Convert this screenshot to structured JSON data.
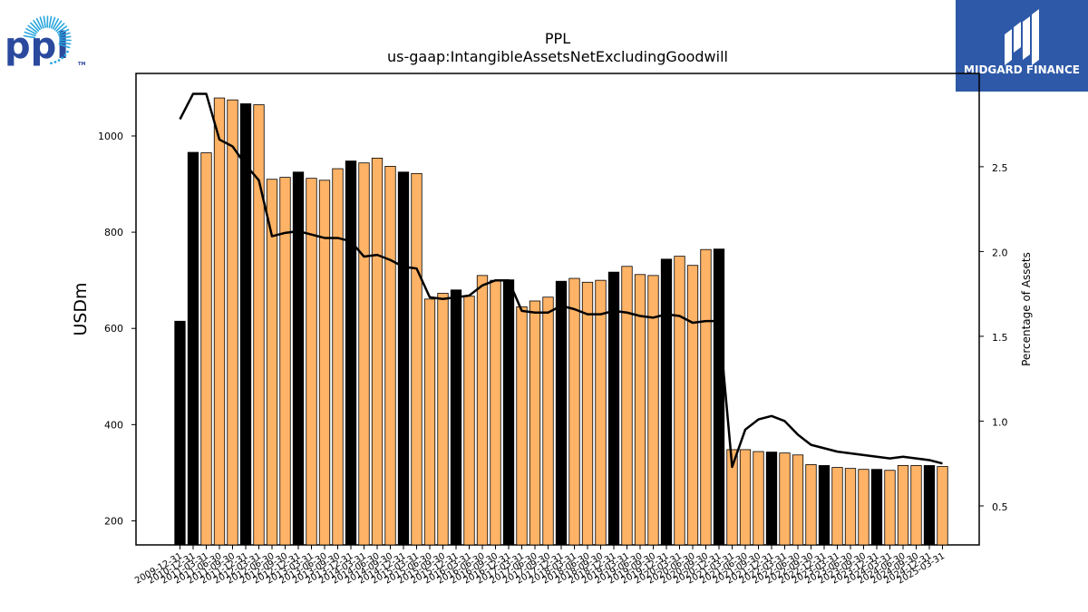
{
  "logos": {
    "company": "ppl",
    "company_tm": "TM",
    "publisher": "MIDGARD FINANCE"
  },
  "colors": {
    "bar_annual": "#000000",
    "bar_quarterly": "#ffb366",
    "line": "#000000",
    "publisher_bg": "#2e59a8"
  },
  "chart_data": {
    "type": "bar",
    "title": "PPL",
    "subtitle": "us-gaap:IntangibleAssetsNetExcludingGoodwill",
    "ylabel": "USDm",
    "y2label": "Percentage of Assets",
    "ylim": [
      150,
      1130
    ],
    "y2lim": [
      0.27,
      3.05
    ],
    "yticks": [
      200,
      400,
      600,
      800,
      1000
    ],
    "y2ticks": [
      0.5,
      1.0,
      1.5,
      2.0,
      2.5
    ],
    "y2tick_labels": [
      "0.5",
      "1.0",
      "1.5",
      "2.0",
      "2.5"
    ],
    "grid": false,
    "categories": [
      "2009-12-31",
      "2010-12-31",
      "2011-03-31",
      "2011-06-30",
      "2011-09-30",
      "2011-12-31",
      "2012-03-31",
      "2012-06-30",
      "2012-09-30",
      "2012-12-31",
      "2013-03-31",
      "2013-06-30",
      "2013-09-30",
      "2013-12-31",
      "2014-03-31",
      "2014-06-30",
      "2014-09-30",
      "2014-12-31",
      "2015-03-31",
      "2015-06-30",
      "2015-09-30",
      "2015-12-31",
      "2016-03-31",
      "2016-06-30",
      "2016-09-30",
      "2016-12-31",
      "2017-03-31",
      "2017-06-30",
      "2017-09-30",
      "2017-12-31",
      "2018-03-31",
      "2018-06-30",
      "2018-09-30",
      "2018-12-31",
      "2019-03-31",
      "2019-06-30",
      "2019-09-30",
      "2019-12-31",
      "2020-03-31",
      "2020-06-30",
      "2020-09-30",
      "2020-12-31",
      "2021-03-31",
      "2021-06-30",
      "2021-09-30",
      "2021-12-31",
      "2022-03-31",
      "2022-06-30",
      "2022-09-30",
      "2022-12-31",
      "2023-03-31",
      "2023-06-30",
      "2023-09-30",
      "2023-12-31",
      "2024-03-31",
      "2024-06-30",
      "2024-09-30",
      "2024-12-31",
      "2025-03-31"
    ],
    "series": [
      {
        "type": "bar",
        "values": [
          615,
          966,
          965,
          1079,
          1075,
          1067,
          1065,
          910,
          914,
          925,
          912,
          908,
          932,
          948,
          944,
          954,
          937,
          925,
          922,
          661,
          673,
          680,
          667,
          710,
          700,
          701,
          645,
          657,
          665,
          698,
          704,
          696,
          700,
          717,
          729,
          712,
          710,
          744,
          750,
          731,
          764,
          765,
          348,
          348,
          344,
          343,
          341,
          337,
          317,
          315,
          311,
          309,
          307,
          307,
          305,
          315,
          315,
          315,
          313
        ],
        "annual": [
          true,
          true,
          false,
          false,
          false,
          true,
          false,
          false,
          false,
          true,
          false,
          false,
          false,
          true,
          false,
          false,
          false,
          true,
          false,
          false,
          false,
          true,
          false,
          false,
          false,
          true,
          false,
          false,
          false,
          true,
          false,
          false,
          false,
          true,
          false,
          false,
          false,
          true,
          false,
          false,
          false,
          true,
          false,
          false,
          false,
          true,
          false,
          false,
          false,
          true,
          false,
          false,
          false,
          true,
          false,
          false,
          false,
          true,
          false
        ]
      },
      {
        "type": "line",
        "axis": "right",
        "values": [
          2.78,
          2.93,
          2.93,
          2.66,
          2.62,
          2.51,
          2.42,
          2.09,
          2.11,
          2.12,
          2.1,
          2.08,
          2.08,
          2.06,
          1.97,
          1.98,
          1.95,
          1.91,
          1.9,
          1.73,
          1.72,
          1.73,
          1.74,
          1.8,
          1.83,
          1.83,
          1.65,
          1.64,
          1.64,
          1.68,
          1.66,
          1.63,
          1.63,
          1.65,
          1.64,
          1.62,
          1.61,
          1.63,
          1.62,
          1.58,
          1.59,
          1.59,
          0.73,
          0.95,
          1.01,
          1.03,
          1.0,
          0.92,
          0.86,
          0.84,
          0.82,
          0.81,
          0.8,
          0.79,
          0.78,
          0.79,
          0.78,
          0.77,
          0.75
        ]
      }
    ]
  }
}
